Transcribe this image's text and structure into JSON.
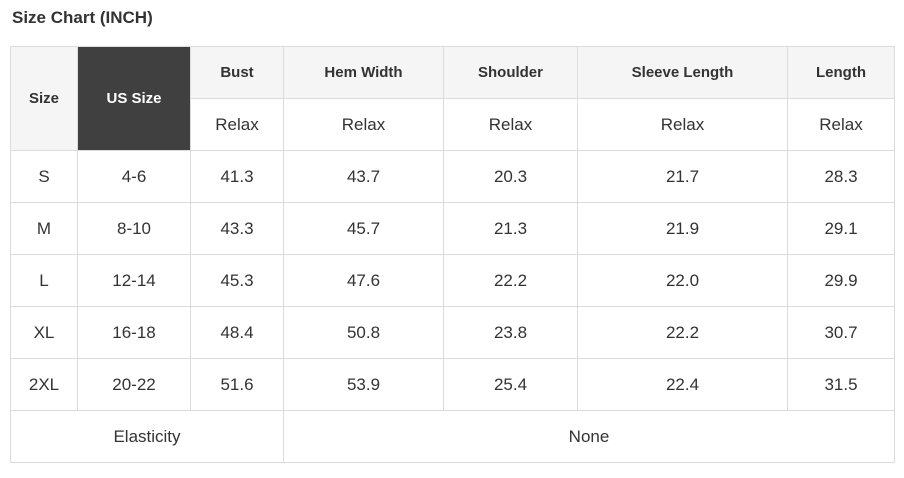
{
  "page_title": "Size Chart (INCH)",
  "colors": {
    "header_bg": "#f5f5f5",
    "dark_cell_bg": "#404040",
    "dark_cell_text": "#ffffff",
    "border": "#dcdcdc",
    "text": "#333333",
    "background": "#ffffff"
  },
  "chart_data": {
    "type": "table",
    "title": "Size Chart (INCH)",
    "unit": "INCH",
    "columns": [
      "Size",
      "US Size",
      "Bust",
      "Hem Width",
      "Shoulder",
      "Sleeve Length",
      "Length"
    ],
    "fit_subheader": [
      "Relax",
      "Relax",
      "Relax",
      "Relax",
      "Relax"
    ],
    "rows": [
      [
        "S",
        "4-6",
        "41.3",
        "43.7",
        "20.3",
        "21.7",
        "28.3"
      ],
      [
        "M",
        "8-10",
        "43.3",
        "45.7",
        "21.3",
        "21.9",
        "29.1"
      ],
      [
        "L",
        "12-14",
        "45.3",
        "47.6",
        "22.2",
        "22.0",
        "29.9"
      ],
      [
        "XL",
        "16-18",
        "48.4",
        "50.8",
        "23.8",
        "22.2",
        "30.7"
      ],
      [
        "2XL",
        "20-22",
        "51.6",
        "53.9",
        "25.4",
        "22.4",
        "31.5"
      ]
    ],
    "footer": {
      "label": "Elasticity",
      "value": "None"
    }
  }
}
